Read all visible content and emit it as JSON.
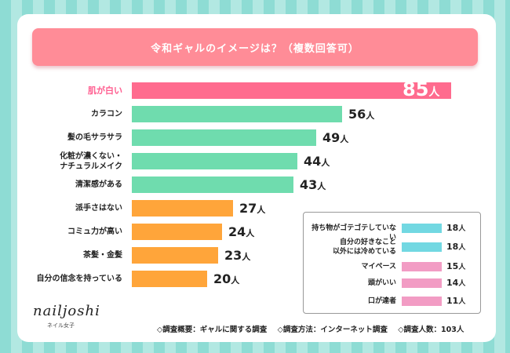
{
  "title": "令和ギャルのイメージは？（複数回答可）",
  "unit": "人",
  "colors": {
    "pink": "#ff6b8e",
    "green": "#6fdcae",
    "orange": "#ffa53a",
    "cyan": "#72d8e2",
    "lightpink": "#f29cc4"
  },
  "chart_data": {
    "type": "bar",
    "orientation": "horizontal",
    "title": "令和ギャルのイメージは？（複数回答可）",
    "categories": [
      "肌が白い",
      "カラコン",
      "髪の毛サラサラ",
      "化粧が濃くない・\nナチュラルメイク",
      "清潔感がある",
      "派手さはない",
      "コミュ力が高い",
      "茶髪・金髪",
      "自分の信念を持っている"
    ],
    "values": [
      85,
      56,
      49,
      44,
      43,
      27,
      24,
      23,
      20
    ],
    "bar_colors": [
      "#ff6b8e",
      "#6fdcae",
      "#6fdcae",
      "#6fdcae",
      "#6fdcae",
      "#ffa53a",
      "#ffa53a",
      "#ffa53a",
      "#ffa53a"
    ],
    "xlim": [
      0,
      85
    ],
    "sub_chart": {
      "categories": [
        "持ち物がゴテゴテしていない",
        "自分の好きなこと\n以外には冷めている",
        "マイペース",
        "頭がいい",
        "口が達者"
      ],
      "values": [
        18,
        18,
        15,
        14,
        11
      ],
      "bar_colors": [
        "#72d8e2",
        "#72d8e2",
        "#f29cc4",
        "#f29cc4",
        "#f29cc4"
      ]
    }
  },
  "logo": {
    "text": "nailjoshi",
    "sub": "ネイル女子"
  },
  "footer": {
    "overview": "◇調査概要：ギャルに関する調査",
    "method": "◇調査方法：インターネット調査",
    "count": "◇調査人数：103人"
  }
}
